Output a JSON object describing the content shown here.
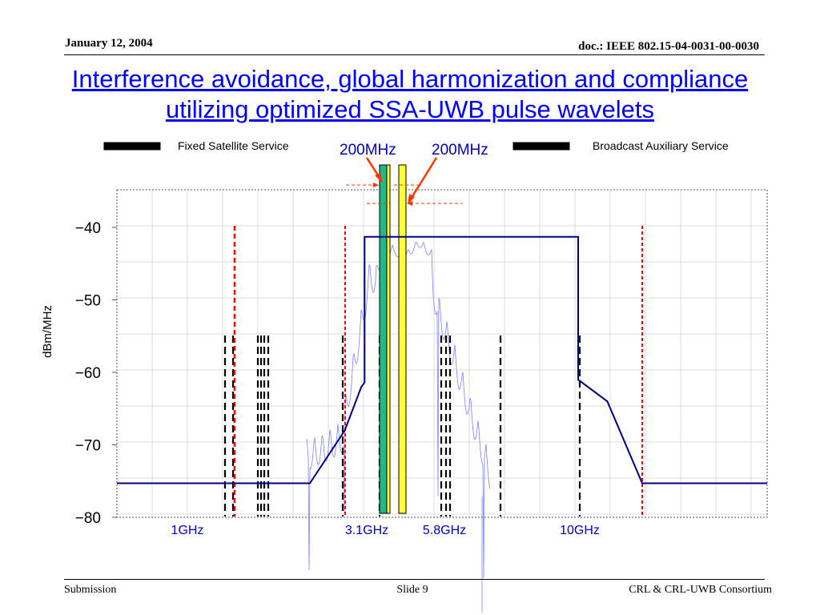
{
  "header": {
    "date": "January 12, 2004",
    "doc": "doc.: IEEE 802.15-04-0031-00-0030"
  },
  "title": "Interference avoidance, global harmonization and compliance utilizing optimized SSA-UWB pulse wavelets",
  "footer": {
    "submission": "Submission",
    "slide": "Slide 9",
    "org": "CRL & CRL-UWB Consortium"
  },
  "colors": {
    "fss": "#ffff33",
    "bas": "#1fb98a",
    "mask": "#000080",
    "spectrum": "#8080ff",
    "annotation": "#ff3300",
    "freq_label": "#0000c0",
    "red_limit": "#ff0000"
  },
  "chart_data": {
    "type": "line",
    "ylabel": "dBm/MHz",
    "ylim": [
      -80,
      -35
    ],
    "y_ticks": [
      -40,
      -50,
      -60,
      -70,
      -80
    ],
    "grid": true,
    "x_markers": [
      {
        "label": "1GHz",
        "x": 1.0
      },
      {
        "label": "3.1GHz",
        "x": 3.1
      },
      {
        "label": "5.8GHz",
        "x": 5.8
      },
      {
        "label": "10GHz",
        "x": 10.0
      }
    ],
    "legend": [
      {
        "label": "Fixed Satellite Service",
        "color": "#ffff33"
      },
      {
        "label": "Broadcast Auxiliary Service",
        "color": "#1fb98a"
      }
    ],
    "annotations": [
      "200MHz",
      "200MHz"
    ],
    "series": [
      {
        "name": "",
        "points": [
          [
            0.35,
            -75.3
          ],
          [
            1.86,
            -75.3
          ],
          [
            2.6,
            -68
          ],
          [
            2.95,
            -62
          ],
          [
            3.02,
            -61.4
          ],
          [
            3.02,
            -41.3
          ],
          [
            9.95,
            -41.3
          ],
          [
            9.95,
            -61
          ],
          [
            10.3,
            -64
          ],
          [
            10.68,
            -75.3
          ],
          [
            11.8,
            -75.3
          ]
        ]
      }
    ]
  }
}
